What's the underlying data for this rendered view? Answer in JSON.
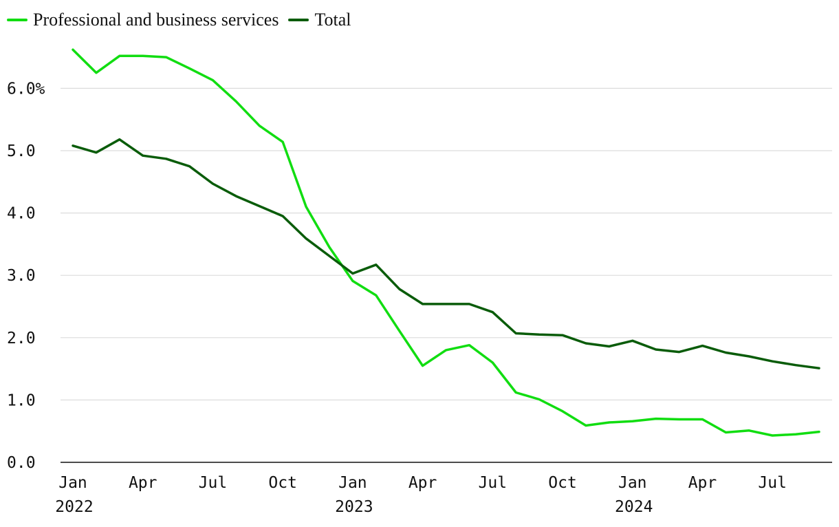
{
  "chart_data": {
    "type": "line",
    "title": "",
    "xlabel": "",
    "ylabel": "",
    "ylim": [
      0,
      6.6
    ],
    "yticks": [
      {
        "value": 0,
        "label": "0.0"
      },
      {
        "value": 1,
        "label": "1.0"
      },
      {
        "value": 2,
        "label": "2.0"
      },
      {
        "value": 3,
        "label": "3.0"
      },
      {
        "value": 4,
        "label": "4.0"
      },
      {
        "value": 5,
        "label": "5.0"
      },
      {
        "value": 6,
        "label": "6.0%"
      }
    ],
    "xticks": [
      {
        "index": 0,
        "label": "Jan",
        "year": "2022"
      },
      {
        "index": 3,
        "label": "Apr",
        "year": ""
      },
      {
        "index": 6,
        "label": "Jul",
        "year": ""
      },
      {
        "index": 9,
        "label": "Oct",
        "year": ""
      },
      {
        "index": 12,
        "label": "Jan",
        "year": "2023"
      },
      {
        "index": 15,
        "label": "Apr",
        "year": ""
      },
      {
        "index": 18,
        "label": "Jul",
        "year": ""
      },
      {
        "index": 21,
        "label": "Oct",
        "year": ""
      },
      {
        "index": 24,
        "label": "Jan",
        "year": "2024"
      },
      {
        "index": 27,
        "label": "Apr",
        "year": ""
      },
      {
        "index": 30,
        "label": "Jul",
        "year": ""
      }
    ],
    "x": [
      "2022-01",
      "2022-02",
      "2022-03",
      "2022-04",
      "2022-05",
      "2022-06",
      "2022-07",
      "2022-08",
      "2022-09",
      "2022-10",
      "2022-11",
      "2022-12",
      "2023-01",
      "2023-02",
      "2023-03",
      "2023-04",
      "2023-05",
      "2023-06",
      "2023-07",
      "2023-08",
      "2023-09",
      "2023-10",
      "2023-11",
      "2023-12",
      "2024-01",
      "2024-02",
      "2024-03",
      "2024-04",
      "2024-05",
      "2024-06",
      "2024-07",
      "2024-08",
      "2024-09"
    ],
    "series": [
      {
        "name": "Professional and business services",
        "color": "#11dd11",
        "values": [
          6.62,
          6.25,
          6.52,
          6.52,
          6.5,
          6.32,
          6.13,
          5.79,
          5.4,
          5.14,
          4.1,
          3.45,
          2.91,
          2.68,
          2.11,
          1.55,
          1.8,
          1.88,
          1.6,
          1.12,
          1.01,
          0.82,
          0.59,
          0.64,
          0.66,
          0.7,
          0.69,
          0.69,
          0.48,
          0.51,
          0.43,
          0.45,
          0.49
        ]
      },
      {
        "name": "Total",
        "color": "#0a5c0a",
        "values": [
          5.08,
          4.97,
          5.18,
          4.92,
          4.87,
          4.75,
          4.47,
          4.27,
          4.11,
          3.95,
          3.59,
          3.31,
          3.03,
          3.17,
          2.78,
          2.54,
          2.54,
          2.54,
          2.41,
          2.07,
          2.05,
          2.04,
          1.91,
          1.86,
          1.95,
          1.81,
          1.77,
          1.87,
          1.76,
          1.7,
          1.62,
          1.56,
          1.51
        ]
      }
    ],
    "legend": "top-left",
    "grid": true
  }
}
